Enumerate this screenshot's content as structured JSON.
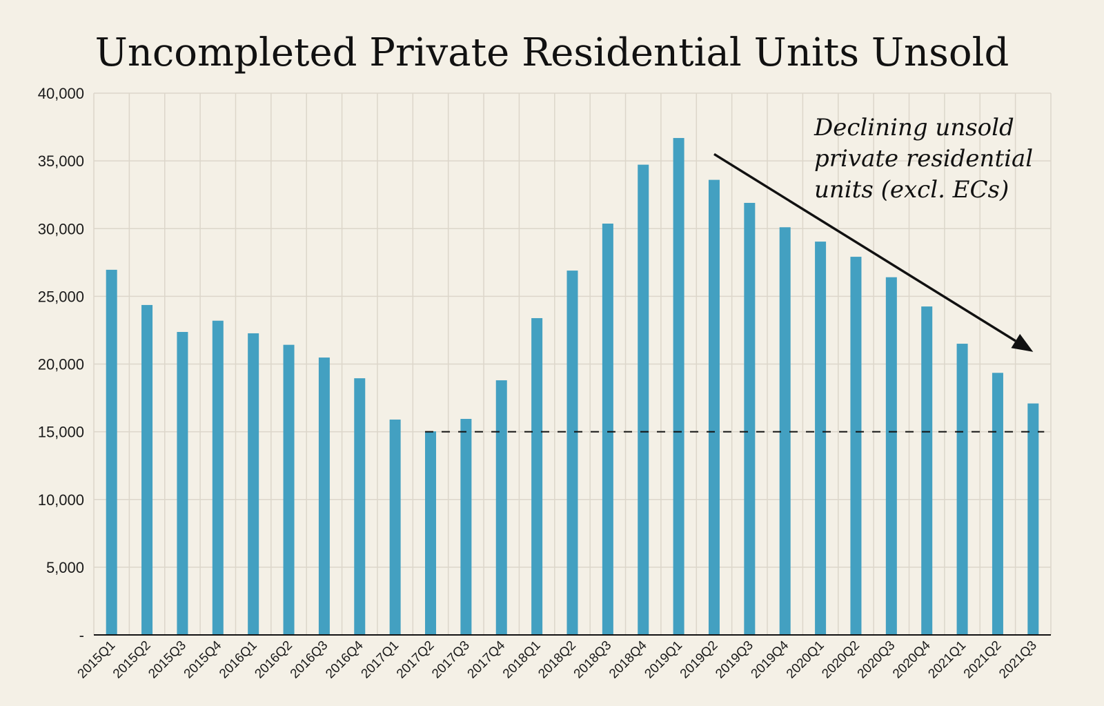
{
  "chart_data": {
    "type": "bar",
    "title": "Uncompleted Private Residential Units Unsold",
    "xlabel": "",
    "ylabel": "",
    "ylim": [
      0,
      40000
    ],
    "yticks": [
      0,
      5000,
      10000,
      15000,
      20000,
      25000,
      30000,
      35000,
      40000
    ],
    "ytick_labels": [
      "-",
      "5,000",
      "10,000",
      "15,000",
      "20,000",
      "25,000",
      "30,000",
      "35,000",
      "40,000"
    ],
    "grid": true,
    "bar_color": "#43a0c1",
    "categories": [
      "2015Q1",
      "2015Q2",
      "2015Q3",
      "2015Q4",
      "2016Q1",
      "2016Q2",
      "2016Q3",
      "2016Q4",
      "2017Q1",
      "2017Q2",
      "2017Q3",
      "2017Q4",
      "2018Q1",
      "2018Q2",
      "2018Q3",
      "2018Q4",
      "2019Q1",
      "2019Q2",
      "2019Q3",
      "2019Q4",
      "2020Q1",
      "2020Q2",
      "2020Q3",
      "2020Q4",
      "2021Q1",
      "2021Q2",
      "2021Q3"
    ],
    "values": [
      26960,
      24360,
      22370,
      23200,
      22270,
      21420,
      20480,
      18950,
      15900,
      15030,
      15950,
      18800,
      23390,
      26900,
      30370,
      34720,
      36690,
      33600,
      31900,
      30100,
      29040,
      27920,
      26410,
      24250,
      21500,
      19350,
      17090
    ],
    "reference_line": {
      "value": 15000,
      "style": "dashed",
      "from_category": "2017Q2",
      "to_category": "2021Q3"
    },
    "annotation": {
      "lines": [
        "Declining unsold",
        "private  residential",
        "units (excl. ECs)"
      ],
      "arrow": {
        "from_category": "2019Q2",
        "from_value": 35500,
        "to_category": "2021Q3",
        "to_value": 20900
      }
    }
  }
}
